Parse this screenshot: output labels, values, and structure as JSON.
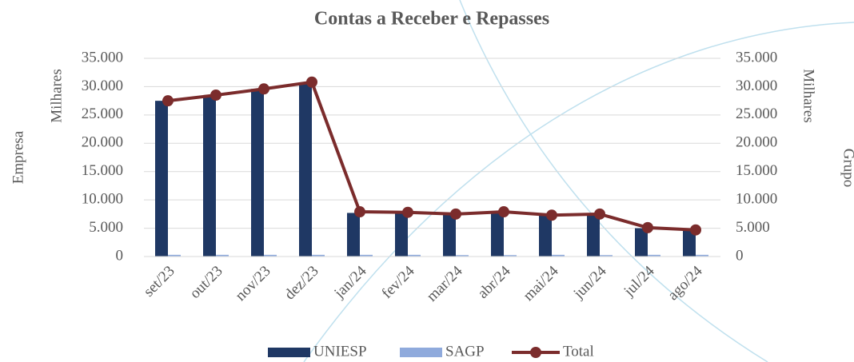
{
  "chart_data": {
    "type": "bar_line",
    "title": "Contas a Receber e Repasses",
    "ylabel_outer": "Empresa",
    "ylabel": "Milhares",
    "y2label": "Milhares",
    "y2label_outer": "Grupo",
    "categories": [
      "set/23",
      "out/23",
      "nov/23",
      "dez/23",
      "jan/24",
      "fev/24",
      "mar/24",
      "abr/24",
      "mai/24",
      "jun/24",
      "jul/24",
      "ago/24"
    ],
    "series": [
      {
        "name": "UNIESP",
        "type": "bar",
        "color": "#1f3864",
        "values": [
          27500,
          28400,
          29600,
          30600,
          7700,
          7600,
          7500,
          7700,
          7200,
          7500,
          5000,
          4600
        ]
      },
      {
        "name": "SAGP",
        "type": "bar",
        "color": "#8faadc",
        "values": [
          300,
          300,
          300,
          300,
          300,
          300,
          250,
          250,
          300,
          250,
          300,
          300
        ]
      },
      {
        "name": "Total",
        "type": "line",
        "axis": "y2",
        "color": "#7b2c2c",
        "values": [
          27500,
          28500,
          29600,
          30800,
          7900,
          7800,
          7500,
          7900,
          7300,
          7500,
          5100,
          4700
        ]
      }
    ],
    "ylim": [
      0,
      35000
    ],
    "yticks": [
      0,
      {
        "value": 5000,
        "label": "5.000"
      },
      {
        "value": 10000,
        "label": "10.000"
      },
      {
        "value": 15000,
        "label": "15.000"
      },
      {
        "value": 20000,
        "label": "20.000"
      },
      {
        "value": 25000,
        "label": "25.000"
      },
      {
        "value": 30000,
        "label": "30.000"
      },
      {
        "value": 35000,
        "label": "35.000"
      }
    ],
    "y2lim": [
      0,
      35000
    ],
    "y2ticks": [
      0,
      {
        "value": 5000,
        "label": "5.000"
      },
      {
        "value": 10000,
        "label": "10.000"
      },
      {
        "value": 15000,
        "label": "15.000"
      },
      {
        "value": 20000,
        "label": "20.000"
      },
      {
        "value": 25000,
        "label": "25.000"
      },
      {
        "value": 30000,
        "label": "30.000"
      },
      {
        "value": 35000,
        "label": "35.000"
      }
    ],
    "grid": true
  }
}
